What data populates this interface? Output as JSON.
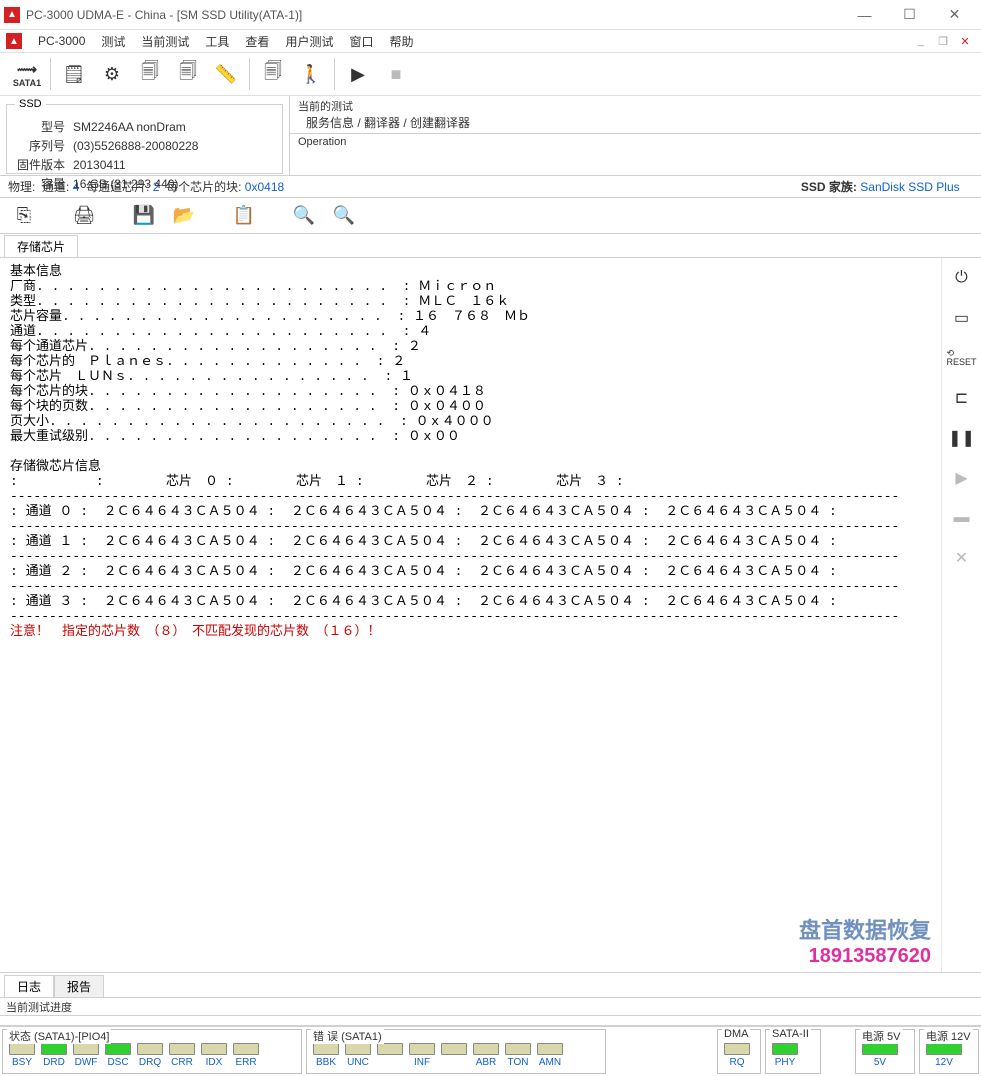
{
  "window": {
    "title": "PC-3000 UDMA-E - China - [SM SSD Utility(ATA-1)]",
    "app_name": "PC-3000"
  },
  "menu": {
    "items": [
      "测试",
      "当前测试",
      "工具",
      "查看",
      "用户测试",
      "窗口",
      "帮助"
    ]
  },
  "toolbar": {
    "sata_label": "SATA1"
  },
  "device": {
    "group_label": "SSD",
    "model_k": "型号",
    "model_v": "SM2246AA nonDram",
    "serial_k": "序列号",
    "serial_v": "(03)5526888-20080228",
    "fw_k": "固件版本",
    "fw_v": "20130411",
    "cap_k": "容量",
    "cap_v": "16 GB (31 293 440)"
  },
  "current_test": {
    "label": "当前的测试",
    "body": "服务信息 / 翻译器 / 创建翻译器",
    "op_label": "Operation"
  },
  "phys": {
    "label": "物理:",
    "chan_k": "通道:",
    "chan_v": "4",
    "perchan_k": "每通道芯片:",
    "perchan_v": "2",
    "blocks_k": "每个芯片的块:",
    "blocks_v": "0x0418",
    "family_k": "SSD 家族:",
    "family_v": "SanDisk SSD Plus"
  },
  "tab": {
    "storage": "存储芯片"
  },
  "report": {
    "section1": "基本信息",
    "rows": [
      [
        "厂商",
        "Ｍｉｃｒｏｎ"
      ],
      [
        "类型",
        "ＭＬＣ　１６ｋ"
      ],
      [
        "芯片容量",
        "１６　７６８　Ｍｂ"
      ],
      [
        "通道",
        "４"
      ],
      [
        "每个通道芯片",
        "２"
      ],
      [
        "每个芯片的　Ｐｌａｎｅｓ",
        "２"
      ],
      [
        "每个芯片　ＬＵＮｓ",
        "１"
      ],
      [
        "每个芯片的块",
        "０ｘ０４１８"
      ],
      [
        "每个块的页数",
        "０ｘ０４００"
      ],
      [
        "页大小",
        "０ｘ４０００"
      ],
      [
        "最大重试级别",
        "０ｘ００"
      ]
    ],
    "section2": "存储微芯片信息",
    "chip_headers": [
      "芯片　０",
      "芯片　１",
      "芯片　２",
      "芯片　３"
    ],
    "channel_label": "通道",
    "chip_id": "２Ｃ６４６４３ＣＡ５０４",
    "warning": "注意！　指定的芯片数　（８）　不匹配发现的芯片数　（１６）！"
  },
  "watermark": {
    "line1": "盘首数据恢复",
    "line2": "18913587620"
  },
  "bottom_tabs": {
    "log": "日志",
    "report": "报告"
  },
  "progress": {
    "label": "当前测试进度"
  },
  "status": {
    "g1": {
      "title": "状态 (SATA1)-[PIO4]",
      "leds": [
        {
          "label": "BSY",
          "on": false
        },
        {
          "label": "DRD",
          "on": true
        },
        {
          "label": "DWF",
          "on": false
        },
        {
          "label": "DSC",
          "on": true
        },
        {
          "label": "DRQ",
          "on": false
        },
        {
          "label": "CRR",
          "on": false
        },
        {
          "label": "IDX",
          "on": false
        },
        {
          "label": "ERR",
          "on": false
        }
      ]
    },
    "g2": {
      "title": "错 误 (SATA1)",
      "leds": [
        {
          "label": "BBK",
          "on": false
        },
        {
          "label": "UNC",
          "on": false
        },
        {
          "label": "",
          "on": false
        },
        {
          "label": "INF",
          "on": false
        },
        {
          "label": "",
          "on": false
        },
        {
          "label": "ABR",
          "on": false
        },
        {
          "label": "TON",
          "on": false
        },
        {
          "label": "AMN",
          "on": false
        }
      ]
    },
    "g3": {
      "title": "DMA",
      "leds": [
        {
          "label": "RQ",
          "on": false
        }
      ]
    },
    "g4": {
      "title": "SATA-II",
      "leds": [
        {
          "label": "PHY",
          "on": true
        }
      ]
    },
    "g5": {
      "title": "电源 5V",
      "leds": [
        {
          "label": "5V",
          "on": true
        }
      ]
    },
    "g6": {
      "title": "电源 12V",
      "leds": [
        {
          "label": "12V",
          "on": true
        }
      ]
    }
  }
}
